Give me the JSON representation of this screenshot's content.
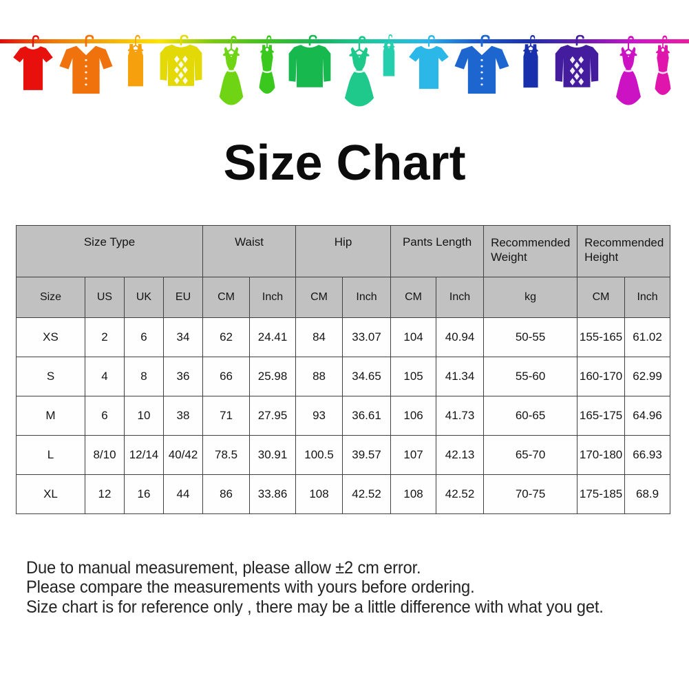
{
  "title": "Size Chart",
  "banner": {
    "clothesline_colors": [
      "#e60b0b",
      "#f07808",
      "#f5ad07",
      "#ffe400",
      "#7ccb12",
      "#3ec21e",
      "#18b45c",
      "#1dc9a0",
      "#28b6ec",
      "#1b59cf",
      "#1d2fae",
      "#6c1bb0",
      "#cf14cc",
      "#ed1ba0"
    ],
    "items": [
      {
        "icon": "tshirt-icon",
        "color": "#e8100c"
      },
      {
        "icon": "shirt-icon",
        "color": "#f0720c"
      },
      {
        "icon": "tank-top-icon",
        "color": "#f5a00c"
      },
      {
        "icon": "argyle-sweater-icon",
        "color": "#e3d906"
      },
      {
        "icon": "dress-icon",
        "color": "#6fd414"
      },
      {
        "icon": "tank-dress-icon",
        "color": "#3bc81e"
      },
      {
        "icon": "sweater-icon",
        "color": "#17b84e"
      },
      {
        "icon": "dress-icon",
        "color": "#1ec98b"
      },
      {
        "icon": "tank-top-icon",
        "color": "#25cfad"
      },
      {
        "icon": "tshirt-icon",
        "color": "#2bb8e8"
      },
      {
        "icon": "shirt-icon",
        "color": "#1d66cf"
      },
      {
        "icon": "tank-top-icon",
        "color": "#1830ab"
      },
      {
        "icon": "argyle-sweater-icon",
        "color": "#441c9e"
      },
      {
        "icon": "dress-icon",
        "color": "#cc13c4"
      },
      {
        "icon": "tank-dress-icon",
        "color": "#e015ab"
      }
    ]
  },
  "table": {
    "group_headers": [
      {
        "label": "Size Type",
        "colspan": 4
      },
      {
        "label": "Waist",
        "colspan": 2
      },
      {
        "label": "Hip",
        "colspan": 2
      },
      {
        "label": "Pants Length",
        "colspan": 2
      },
      {
        "label": "Recommended Weight",
        "colspan": 1
      },
      {
        "label": "Recommended Height",
        "colspan": 2
      }
    ],
    "column_headers": [
      "Size",
      "US",
      "UK",
      "EU",
      "CM",
      "Inch",
      "CM",
      "Inch",
      "CM",
      "Inch",
      "kg",
      "CM",
      "Inch"
    ],
    "rows": [
      [
        "XS",
        "2",
        "6",
        "34",
        "62",
        "24.41",
        "84",
        "33.07",
        "104",
        "40.94",
        "50-55",
        "155-165",
        "61.02"
      ],
      [
        "S",
        "4",
        "8",
        "36",
        "66",
        "25.98",
        "88",
        "34.65",
        "105",
        "41.34",
        "55-60",
        "160-170",
        "62.99"
      ],
      [
        "M",
        "6",
        "10",
        "38",
        "71",
        "27.95",
        "93",
        "36.61",
        "106",
        "41.73",
        "60-65",
        "165-175",
        "64.96"
      ],
      [
        "L",
        "8/10",
        "12/14",
        "40/42",
        "78.5",
        "30.91",
        "100.5",
        "39.57",
        "107",
        "42.13",
        "65-70",
        "170-180",
        "66.93"
      ],
      [
        "XL",
        "12",
        "16",
        "44",
        "86",
        "33.86",
        "108",
        "42.52",
        "108",
        "42.52",
        "70-75",
        "175-185",
        "68.9"
      ]
    ]
  },
  "notes": [
    "Due to manual measurement, please allow ±2 cm error.",
    "Please compare the measurements with yours before ordering.",
    "Size chart is for reference only , there may be a little difference with what you get."
  ],
  "colors": {
    "header_bg": "#c1c1c1",
    "table_border": "#3f3f3f",
    "title_text": "#0c0c0c",
    "body_text": "#141414"
  }
}
